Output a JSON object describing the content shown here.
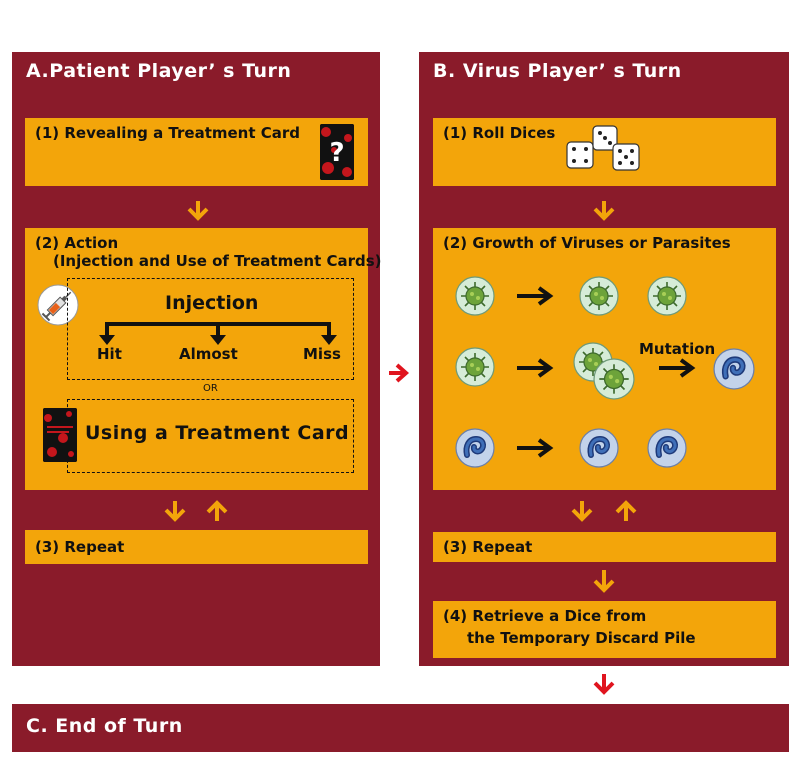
{
  "colors": {
    "panel": "#8a1b2a",
    "box": "#f3a50a",
    "arrow_orange": "#f3a50a",
    "arrow_red": "#e0141e"
  },
  "panel_a": {
    "title": "A.Patient Player’ s Turn",
    "step1": "(1) Revealing a Treatment Card",
    "step2_line1": "(2) Action",
    "step2_line2": "(Injection and Use of Treatment Cards)",
    "injection": "Injection",
    "outcomes": [
      "Hit",
      "Almost",
      "Miss"
    ],
    "or": "OR",
    "using_card": "Using a Treatment Card",
    "step3": "(3) Repeat"
  },
  "panel_b": {
    "title": "B. Virus Player’ s Turn",
    "step1": "(1) Roll Dices",
    "step2": "(2) Growth of Viruses or Parasites",
    "mutation": "Mutation",
    "step3": "(3) Repeat",
    "step4_line1": "(4) Retrieve a Dice from",
    "step4_line2": "the Temporary Discard Pile"
  },
  "panel_c": {
    "title": "C. End of Turn"
  },
  "icons": [
    "treatment-card-icon",
    "dice-icon",
    "syringe-icon",
    "virus-icon",
    "parasite-icon"
  ]
}
